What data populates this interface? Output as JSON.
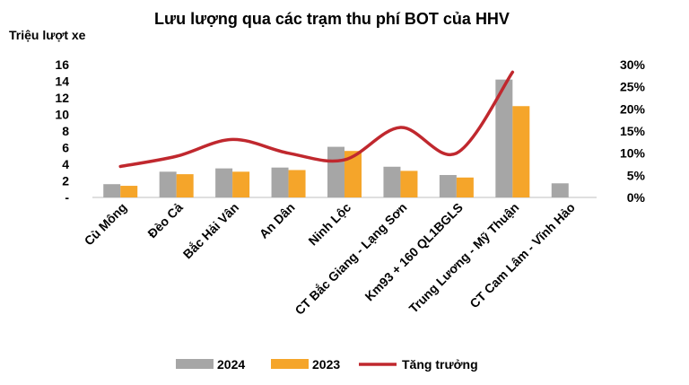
{
  "chart_data": {
    "type": "bar",
    "title": "Lưu lượng qua các trạm thu phí BOT của HHV",
    "ylabel": "Triệu lượt xe",
    "ylim": [
      0,
      16
    ],
    "y2lim": [
      0,
      0.3
    ],
    "categories": [
      "Cù Mông",
      "Đèo Cả",
      "Bắc Hải Vân",
      "An Dân",
      "Ninh Lộc",
      "CT Bắc Giang - Lạng Sơn",
      "Km93 + 160 QL1BGLS",
      "Trung Lương - Mỹ Thuận",
      "CT Cam Lâm - Vĩnh Hảo"
    ],
    "y_ticks": [
      "-",
      "2",
      "4",
      "6",
      "8",
      "10",
      "12",
      "14",
      "16"
    ],
    "y2_ticks": [
      "0%",
      "5%",
      "10%",
      "15%",
      "20%",
      "25%",
      "30%"
    ],
    "series": [
      {
        "name": "2024",
        "kind": "bar",
        "axis": "left",
        "color": "#a6a6a6",
        "values": [
          1.6,
          3.1,
          3.5,
          3.6,
          6.1,
          3.7,
          2.7,
          14.2,
          1.7
        ]
      },
      {
        "name": "2023",
        "kind": "bar",
        "axis": "left",
        "color": "#f5a52a",
        "values": [
          1.4,
          2.8,
          3.1,
          3.3,
          5.6,
          3.2,
          2.4,
          11.0,
          null
        ]
      },
      {
        "name": "Tăng trưởng",
        "kind": "line",
        "axis": "right",
        "color": "#c0282e",
        "values": [
          0.07,
          0.093,
          0.131,
          0.1,
          0.085,
          0.158,
          0.1,
          0.283,
          null
        ]
      }
    ],
    "legend_position": "bottom",
    "grid": false
  }
}
